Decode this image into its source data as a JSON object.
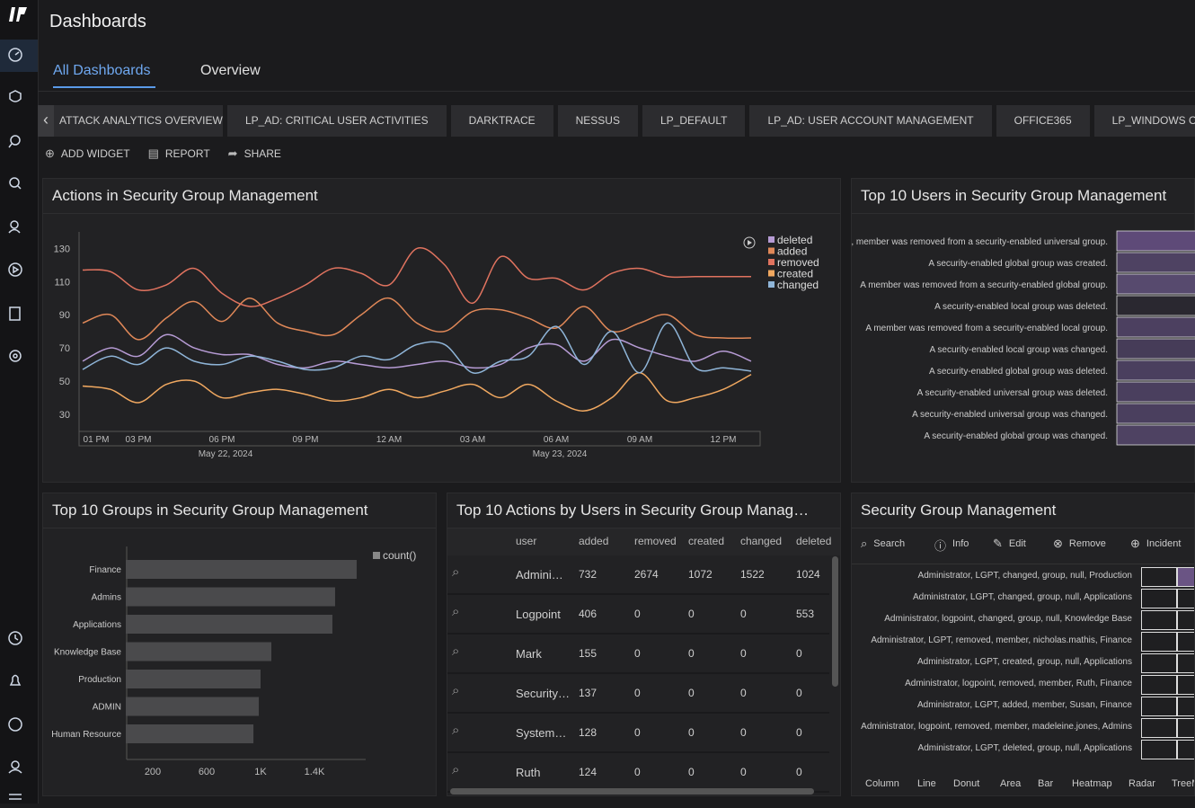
{
  "header": {
    "title": "Dashboards",
    "nav": [
      "All Dashboards",
      "Overview"
    ]
  },
  "dashboard_tabs": [
    "ATTACK ANALYTICS OVERVIEW",
    "LP_AD: CRITICAL USER ACTIVITIES",
    "DARKTRACE",
    "NESSUS",
    "LP_DEFAULT",
    "LP_AD: USER ACCOUNT MANAGEMENT",
    "OFFICE365",
    "LP_WINDOWS OVERVIEW"
  ],
  "toolbar": [
    "ADD WIDGET",
    "REPORT",
    "SHARE"
  ],
  "chart_data": [
    {
      "type": "line",
      "title": "Actions in Security Group Management",
      "categories": [
        "01 PM",
        null,
        "03 PM",
        null,
        null,
        "06 PM",
        null,
        null,
        "09 PM",
        null,
        null,
        "12 AM",
        null,
        null,
        "03 AM",
        null,
        null,
        "06 AM",
        null,
        null,
        "09 AM",
        null,
        null,
        "12 PM",
        null
      ],
      "sublabels": [
        null,
        null,
        null,
        null,
        null,
        "May 22, 2024",
        null,
        null,
        null,
        null,
        null,
        null,
        null,
        null,
        null,
        null,
        null,
        "May 23, 2024",
        null,
        null,
        null,
        null,
        null,
        null,
        null
      ],
      "ylim": [
        18,
        140
      ],
      "yticks": [
        30,
        50,
        70,
        90,
        110,
        130
      ],
      "series": [
        {
          "name": "deleted",
          "color": "#b69bd4",
          "values": [
            62,
            70,
            65,
            78,
            70,
            66,
            66,
            60,
            58,
            62,
            60,
            58,
            60,
            62,
            58,
            60,
            70,
            72,
            62,
            75,
            70,
            65,
            62,
            68,
            62
          ]
        },
        {
          "name": "added",
          "color": "#e08858",
          "values": [
            85,
            90,
            75,
            88,
            98,
            86,
            100,
            85,
            80,
            78,
            90,
            100,
            85,
            80,
            92,
            93,
            88,
            82,
            95,
            80,
            85,
            90,
            78,
            76,
            76
          ]
        },
        {
          "name": "removed",
          "color": "#e0735f",
          "values": [
            117,
            116,
            105,
            108,
            118,
            103,
            95,
            100,
            108,
            118,
            115,
            108,
            130,
            120,
            97,
            125,
            112,
            112,
            105,
            115,
            118,
            113,
            113,
            113,
            113
          ]
        },
        {
          "name": "created",
          "color": "#f0a860",
          "values": [
            47,
            45,
            37,
            48,
            50,
            40,
            43,
            45,
            42,
            38,
            40,
            45,
            40,
            44,
            48,
            40,
            48,
            38,
            32,
            40,
            55,
            38,
            40,
            45,
            54
          ]
        },
        {
          "name": "changed",
          "color": "#8fb5d8",
          "values": [
            57,
            65,
            60,
            70,
            62,
            60,
            65,
            62,
            57,
            58,
            65,
            63,
            72,
            72,
            55,
            62,
            65,
            83,
            60,
            80,
            55,
            85,
            58,
            58,
            56
          ]
        }
      ]
    },
    {
      "type": "bar",
      "title": "Top 10 Users in Security Group Management",
      "categories": [
        ", member was removed from a security-enabled universal group.",
        "A security-enabled global group was created.",
        "A member was removed from a security-enabled global group.",
        "A security-enabled local group was deleted.",
        "A member was removed from a security-enabled local group.",
        "A security-enabled local group was changed.",
        "A security-enabled global group was deleted.",
        "A security-enabled universal group was deleted.",
        "A security-enabled universal group was changed.",
        "A security-enabled global group was changed."
      ],
      "colors": [
        "#5e4a78",
        "#4e4262",
        "#574a6e",
        "#2a2830",
        "#4c4060",
        "#463c58",
        "#4a3f5e",
        "#4a3f5e",
        "#4a3f5e",
        "#4e4262"
      ]
    },
    {
      "type": "hbar",
      "title": "Top 10 Groups in Security Group Management",
      "categories": [
        "Finance",
        "Admins",
        "Applications",
        "Knowledge Base",
        "Production",
        "ADMIN",
        "Human Resource"
      ],
      "series": [
        {
          "name": "count()",
          "color": "#4a4a4c",
          "values": [
            1713,
            1553,
            1533,
            1080,
            1000,
            987,
            947
          ]
        }
      ],
      "xlim": [
        0,
        1780
      ],
      "xticks": [
        200,
        600,
        {
          "value": 1000,
          "label": "1K"
        },
        {
          "value": 1400,
          "label": "1.4K"
        }
      ]
    }
  ],
  "table": {
    "title": "Top 10 Actions by Users in Security Group Manag…",
    "columns": [
      "user",
      "added",
      "removed",
      "created",
      "changed",
      "deleted"
    ],
    "rows": [
      [
        "Admini…",
        "732",
        "2674",
        "1072",
        "1522",
        "1024"
      ],
      [
        "Logpoint",
        "406",
        "0",
        "0",
        "0",
        "553"
      ],
      [
        "Mark",
        "155",
        "0",
        "0",
        "0",
        "0"
      ],
      [
        "Security…",
        "137",
        "0",
        "0",
        "0",
        "0"
      ],
      [
        "System…",
        "128",
        "0",
        "0",
        "0",
        "0"
      ],
      [
        "Ruth",
        "124",
        "0",
        "0",
        "0",
        "0"
      ]
    ]
  },
  "security": {
    "title": "Security Group Management",
    "actions": [
      "Search",
      "Info",
      "Edit",
      "Remove",
      "Incident"
    ],
    "labels": [
      "Administrator, LGPT, changed, group, null, Production",
      "Administrator, LGPT, changed, group, null, Applications",
      "Administrator, logpoint, changed, group, null, Knowledge Base",
      "Administrator, LGPT, removed, member, nicholas.mathis, Finance",
      "Administrator, LGPT, created, group, null, Applications",
      "Administrator, logpoint, removed, member, Ruth, Finance",
      "Administrator, LGPT, added, member, Susan, Finance",
      "Administrator, logpoint, removed, member, madeleine.jones, Admins",
      "Administrator, LGPT, deleted, group, null, Applications"
    ],
    "chart_types": [
      "Column",
      "Line",
      "Donut",
      "Area",
      "Bar",
      "Heatmap",
      "Radar",
      "TreeMap"
    ]
  }
}
